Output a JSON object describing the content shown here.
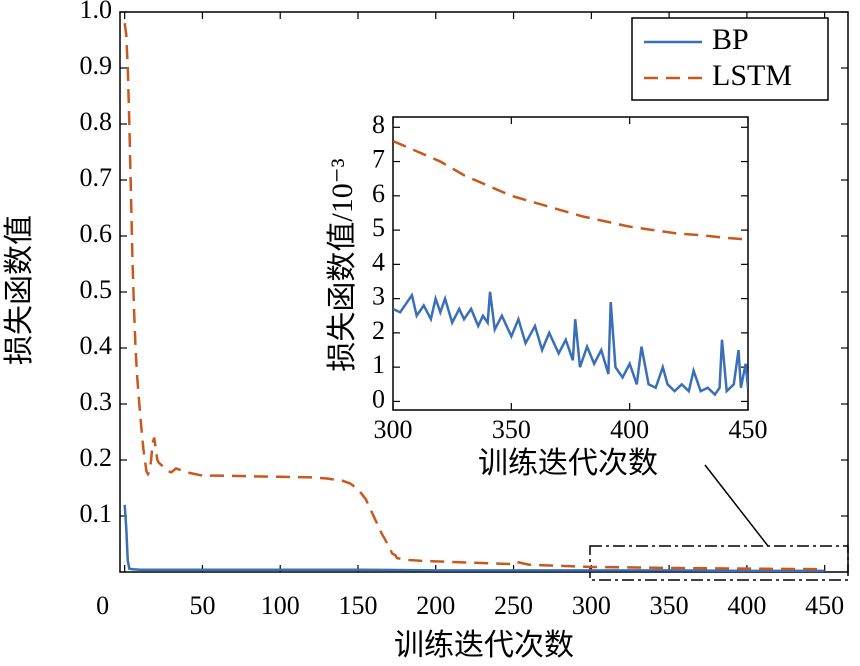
{
  "chart_data": [
    {
      "type": "line",
      "xlabel": "训练迭代次数",
      "ylabel": "损失函数值",
      "xlim": [
        -3,
        465
      ],
      "ylim": [
        0,
        1.0
      ],
      "xticks": [
        0,
        50,
        100,
        150,
        200,
        250,
        300,
        350,
        400,
        450
      ],
      "yticks": [
        0.1,
        0.2,
        0.3,
        0.4,
        0.5,
        0.6,
        0.7,
        0.8,
        0.9,
        {
          "value": 1,
          "label": "1.0"
        }
      ],
      "grid": false,
      "legend": "upper right",
      "series": [
        {
          "name": "BP",
          "color": "#3a6fb8",
          "style": "solid",
          "x": [
            0,
            1,
            2,
            3,
            5,
            10,
            20,
            50,
            100,
            150,
            200,
            250,
            300,
            350,
            400,
            450
          ],
          "values": [
            0.12,
            0.08,
            0.02,
            0.006,
            0.005,
            0.004,
            0.004,
            0.004,
            0.004,
            0.004,
            0.003,
            0.003,
            0.003,
            0.003,
            0.002,
            0.002
          ]
        },
        {
          "name": "LSTM",
          "color": "#c8581e",
          "style": "dashed",
          "x": [
            0,
            1,
            2,
            3,
            4,
            5,
            6,
            7,
            8,
            10,
            12,
            14,
            15,
            16,
            17,
            18,
            19,
            20,
            21,
            22,
            24,
            26,
            28,
            30,
            33,
            36,
            40,
            45,
            50,
            60,
            80,
            100,
            120,
            130,
            140,
            145,
            150,
            155,
            160,
            165,
            170,
            172,
            174,
            175,
            180,
            190,
            200,
            220,
            240,
            250,
            252,
            260,
            280,
            300,
            330,
            360,
            400,
            450
          ],
          "values": [
            0.98,
            0.96,
            0.9,
            0.8,
            0.68,
            0.56,
            0.47,
            0.4,
            0.35,
            0.28,
            0.22,
            0.18,
            0.175,
            0.18,
            0.2,
            0.23,
            0.24,
            0.22,
            0.2,
            0.195,
            0.19,
            0.185,
            0.18,
            0.178,
            0.185,
            0.182,
            0.178,
            0.175,
            0.172,
            0.172,
            0.171,
            0.17,
            0.169,
            0.167,
            0.163,
            0.158,
            0.148,
            0.13,
            0.1,
            0.07,
            0.045,
            0.033,
            0.03,
            0.025,
            0.022,
            0.02,
            0.019,
            0.017,
            0.015,
            0.014,
            0.018,
            0.013,
            0.011,
            0.009,
            0.008,
            0.007,
            0.006,
            0.005
          ]
        }
      ]
    },
    {
      "type": "line",
      "xlabel": "训练迭代次数",
      "ylabel": "损失函数值/10⁻³",
      "xlim": [
        300,
        450
      ],
      "ylim": [
        -0.25,
        8.3
      ],
      "xticks": [
        300,
        350,
        400,
        450
      ],
      "yticks": [
        0,
        1,
        2,
        3,
        4,
        5,
        6,
        7,
        8
      ],
      "grid": false,
      "series": [
        {
          "color": "#3a6fb8",
          "style": "solid",
          "x": [
            300,
            303,
            306,
            308,
            310,
            313,
            316,
            318,
            320,
            322,
            325,
            328,
            330,
            333,
            336,
            338,
            340,
            341,
            343,
            346,
            350,
            353,
            356,
            360,
            363,
            366,
            370,
            373,
            376,
            377,
            379,
            382,
            385,
            388,
            391,
            392,
            394,
            397,
            400,
            403,
            405,
            408,
            411,
            414,
            416,
            419,
            422,
            425,
            427,
            430,
            433,
            436,
            438,
            439,
            441,
            444,
            446,
            447,
            449,
            450
          ],
          "values": [
            2.7,
            2.6,
            2.9,
            3.1,
            2.5,
            2.8,
            2.4,
            3.0,
            2.6,
            3.0,
            2.3,
            2.7,
            2.4,
            2.7,
            2.2,
            2.5,
            2.3,
            3.2,
            2.1,
            2.5,
            1.9,
            2.4,
            1.7,
            2.2,
            1.5,
            2.0,
            1.4,
            1.8,
            1.2,
            2.4,
            1.0,
            1.6,
            1.1,
            1.5,
            0.8,
            2.9,
            1.0,
            0.7,
            1.1,
            0.5,
            1.6,
            0.5,
            0.4,
            1.0,
            0.5,
            0.3,
            0.5,
            0.3,
            0.9,
            0.3,
            0.4,
            0.2,
            0.4,
            1.8,
            0.3,
            0.5,
            1.5,
            0.4,
            1.1,
            0.4
          ]
        },
        {
          "color": "#c8581e",
          "style": "dashed",
          "x": [
            300,
            310,
            320,
            330,
            340,
            350,
            360,
            370,
            380,
            390,
            400,
            410,
            420,
            430,
            440,
            450
          ],
          "values": [
            7.6,
            7.3,
            7.0,
            6.6,
            6.3,
            6.0,
            5.8,
            5.6,
            5.4,
            5.25,
            5.1,
            5.0,
            4.9,
            4.85,
            4.78,
            4.72
          ]
        }
      ]
    }
  ]
}
